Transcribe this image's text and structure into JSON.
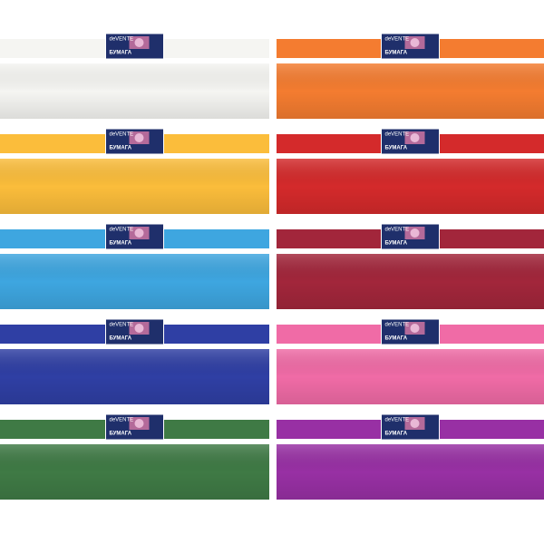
{
  "label": {
    "brand": "deVENTE",
    "product": "БУМАГА"
  },
  "rolls": [
    {
      "color": "#f5f5f2"
    },
    {
      "color": "#f47c30"
    },
    {
      "color": "#fbbd3b"
    },
    {
      "color": "#d42a2b"
    },
    {
      "color": "#3ea6e0"
    },
    {
      "color": "#a2263b"
    },
    {
      "color": "#2f3fa4"
    },
    {
      "color": "#f06ba6"
    },
    {
      "color": "#3f7a45"
    },
    {
      "color": "#9830a4"
    }
  ]
}
